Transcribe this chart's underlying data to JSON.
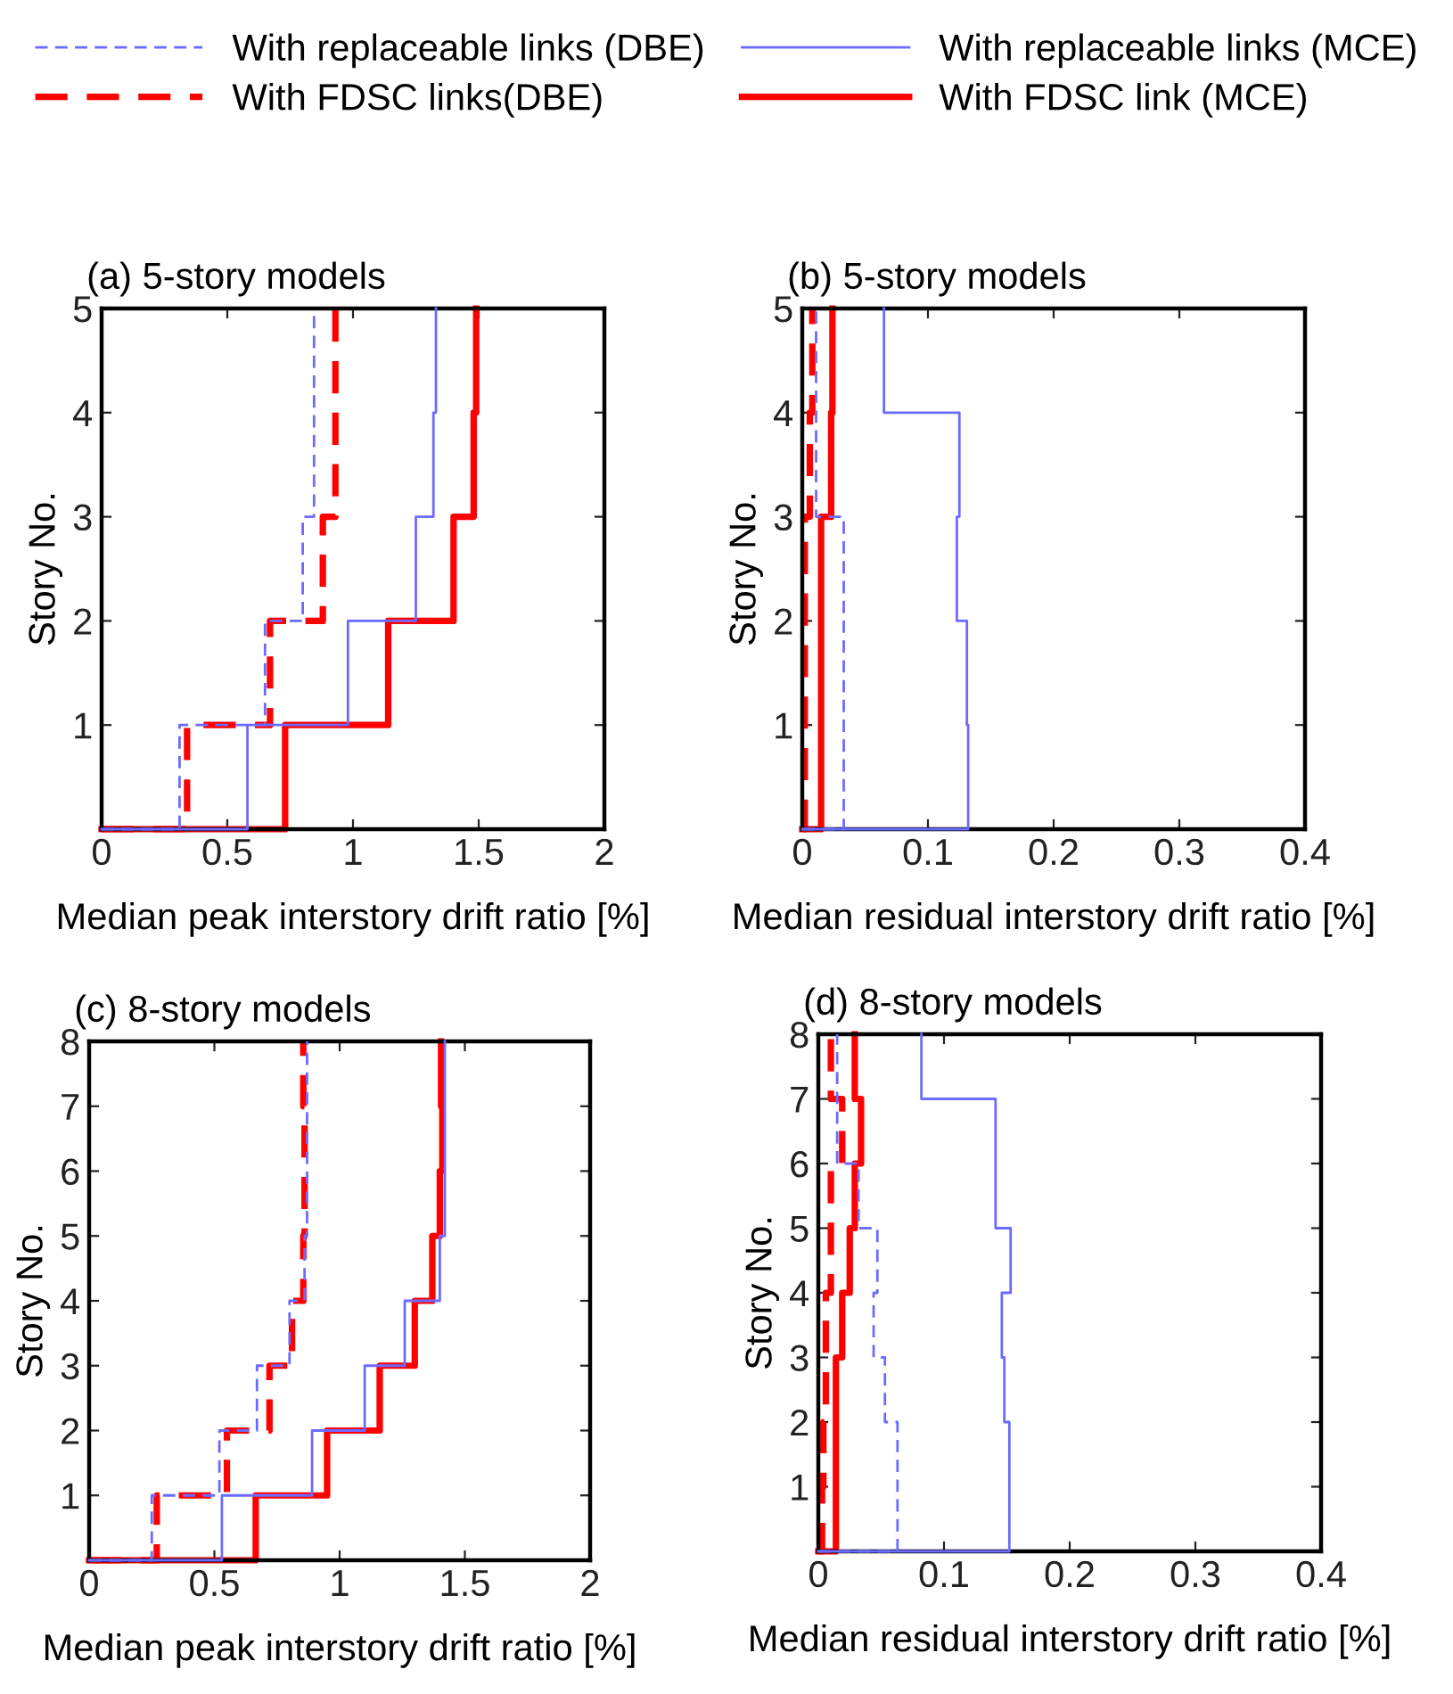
{
  "chart_data": [
    {
      "type": "line",
      "title": "(a) 5-story models",
      "xlabel": "Median peak interstory drift ratio [%]",
      "ylabel": "Story No.",
      "xlim": [
        0,
        2
      ],
      "xticks": [
        0,
        0.5,
        1,
        1.5,
        2
      ],
      "ylim": [
        0,
        5
      ],
      "yticks": [
        1,
        2,
        3,
        4,
        5
      ],
      "legend": "top",
      "grid": false,
      "series": [
        {
          "name": "With replaceable links (DBE)",
          "color": "#6b6bff",
          "line_style": "dashed",
          "x": [
            0,
            0.31,
            0.31,
            0.65,
            0.65,
            0.8,
            0.8,
            0.845,
            0.845,
            0.845,
            0.845
          ],
          "values": [
            0,
            0,
            1,
            1,
            2,
            2,
            3,
            3,
            4,
            4,
            5
          ]
        },
        {
          "name": "With FDSC links(DBE)",
          "color": "#ff0000",
          "line_style": "dashed",
          "x": [
            0,
            0.34,
            0.34,
            0.67,
            0.67,
            0.88,
            0.88,
            0.93,
            0.93,
            0.93,
            0.93
          ],
          "values": [
            0,
            0,
            1,
            1,
            2,
            2,
            3,
            3,
            4,
            4,
            5
          ]
        },
        {
          "name": "With replaceable links (MCE)",
          "color": "#6b6bff",
          "line_style": "solid",
          "x": [
            0,
            0.58,
            0.58,
            0.98,
            0.98,
            1.25,
            1.25,
            1.32,
            1.32,
            1.33,
            1.33
          ],
          "values": [
            0,
            0,
            1,
            1,
            2,
            2,
            3,
            3,
            4,
            4,
            5
          ]
        },
        {
          "name": "With FDSC link (MCE)",
          "color": "#ff0000",
          "line_style": "solid",
          "x": [
            0,
            0.73,
            0.73,
            1.14,
            1.14,
            1.4,
            1.4,
            1.48,
            1.48,
            1.49,
            1.49
          ],
          "values": [
            0,
            0,
            1,
            1,
            2,
            2,
            3,
            3,
            4,
            4,
            5
          ]
        }
      ]
    },
    {
      "type": "line",
      "title": "(b) 5-story models",
      "xlabel": "Median residual interstory drift ratio [%]",
      "ylabel": "Story No.",
      "xlim": [
        0,
        0.4
      ],
      "xticks": [
        0,
        0.1,
        0.2,
        0.3,
        0.4
      ],
      "ylim": [
        0,
        5
      ],
      "yticks": [
        1,
        2,
        3,
        4,
        5
      ],
      "grid": false,
      "series": [
        {
          "color": "#6b6bff",
          "line_style": "dashed",
          "x": [
            0,
            0.033,
            0.033,
            0.033,
            0.033,
            0.033,
            0.033,
            0.011,
            0.011,
            0.011,
            0.011
          ],
          "values": [
            0,
            0,
            1,
            1,
            2,
            2,
            3,
            3,
            4,
            4,
            5
          ]
        },
        {
          "color": "#ff0000",
          "line_style": "dashed",
          "x": [
            0,
            0.002,
            0.002,
            0.002,
            0.002,
            0.002,
            0.002,
            0.006,
            0.006,
            0.008,
            0.008
          ],
          "values": [
            0,
            0,
            1,
            1,
            2,
            2,
            3,
            3,
            4,
            4,
            5
          ]
        },
        {
          "color": "#6b6bff",
          "line_style": "solid",
          "x": [
            0,
            0.132,
            0.132,
            0.131,
            0.131,
            0.123,
            0.123,
            0.125,
            0.125,
            0.065,
            0.065
          ],
          "values": [
            0,
            0,
            1,
            1,
            2,
            2,
            3,
            3,
            4,
            4,
            5
          ]
        },
        {
          "color": "#ff0000",
          "line_style": "solid",
          "x": [
            0,
            0.015,
            0.015,
            0.015,
            0.015,
            0.015,
            0.015,
            0.023,
            0.023,
            0.024,
            0.024
          ],
          "values": [
            0,
            0,
            1,
            1,
            2,
            2,
            3,
            3,
            4,
            4,
            5
          ]
        }
      ]
    },
    {
      "type": "line",
      "title": "(c) 8-story models",
      "xlabel": "Median peak interstory drift ratio [%]",
      "ylabel": "Story No.",
      "xlim": [
        0,
        2
      ],
      "xticks": [
        0,
        0.5,
        1,
        1.5,
        2
      ],
      "ylim": [
        0,
        8
      ],
      "yticks": [
        1,
        2,
        3,
        4,
        5,
        6,
        7,
        8
      ],
      "grid": false,
      "series": [
        {
          "color": "#6b6bff",
          "line_style": "dashed",
          "x": [
            0,
            0.25,
            0.25,
            0.52,
            0.52,
            0.67,
            0.67,
            0.8,
            0.8,
            0.86,
            0.86,
            0.87,
            0.87,
            0.87,
            0.87,
            0.87,
            0.87
          ],
          "values": [
            0,
            0,
            1,
            1,
            2,
            2,
            3,
            3,
            4,
            4,
            5,
            5,
            6,
            6,
            7,
            7,
            8
          ]
        },
        {
          "color": "#ff0000",
          "line_style": "dashed",
          "x": [
            0,
            0.27,
            0.27,
            0.55,
            0.55,
            0.72,
            0.72,
            0.81,
            0.81,
            0.855,
            0.855,
            0.86,
            0.86,
            0.86,
            0.86,
            0.855,
            0.855
          ],
          "values": [
            0,
            0,
            1,
            1,
            2,
            2,
            3,
            3,
            4,
            4,
            5,
            5,
            6,
            6,
            7,
            7,
            8
          ]
        },
        {
          "color": "#6b6bff",
          "line_style": "solid",
          "x": [
            0,
            0.53,
            0.53,
            0.89,
            0.89,
            1.1,
            1.1,
            1.26,
            1.26,
            1.4,
            1.4,
            1.42,
            1.42,
            1.42,
            1.42,
            1.42,
            1.42
          ],
          "values": [
            0,
            0,
            1,
            1,
            2,
            2,
            3,
            3,
            4,
            4,
            5,
            5,
            6,
            6,
            7,
            7,
            8
          ]
        },
        {
          "color": "#ff0000",
          "line_style": "solid",
          "x": [
            0,
            0.665,
            0.665,
            0.95,
            0.95,
            1.16,
            1.16,
            1.3,
            1.3,
            1.37,
            1.37,
            1.4,
            1.4,
            1.41,
            1.41,
            1.405,
            1.405
          ],
          "values": [
            0,
            0,
            1,
            1,
            2,
            2,
            3,
            3,
            4,
            4,
            5,
            5,
            6,
            6,
            7,
            7,
            8
          ]
        }
      ]
    },
    {
      "type": "line",
      "title": "(d) 8-story models",
      "xlabel": "Median residual interstory drift ratio [%]",
      "ylabel": "Story No.",
      "xlim": [
        0,
        0.4
      ],
      "xticks": [
        0,
        0.1,
        0.2,
        0.3,
        0.4
      ],
      "ylim": [
        0,
        8
      ],
      "yticks": [
        1,
        2,
        3,
        4,
        5,
        6,
        7,
        8
      ],
      "grid": false,
      "series": [
        {
          "color": "#6b6bff",
          "line_style": "dashed",
          "x": [
            0,
            0.063,
            0.063,
            0.063,
            0.063,
            0.053,
            0.053,
            0.044,
            0.044,
            0.047,
            0.047,
            0.032,
            0.032,
            0.015,
            0.015,
            0.015,
            0.015
          ],
          "values": [
            0,
            0,
            1,
            1,
            2,
            2,
            3,
            3,
            4,
            4,
            5,
            5,
            6,
            6,
            7,
            7,
            8
          ]
        },
        {
          "color": "#ff0000",
          "line_style": "dashed",
          "x": [
            0,
            0.003,
            0.003,
            0.004,
            0.004,
            0.006,
            0.006,
            0.006,
            0.006,
            0.01,
            0.01,
            0.01,
            0.01,
            0.019,
            0.019,
            0.01,
            0.01
          ],
          "values": [
            0,
            0,
            1,
            1,
            2,
            2,
            3,
            3,
            4,
            4,
            5,
            5,
            6,
            6,
            7,
            7,
            8
          ]
        },
        {
          "color": "#6b6bff",
          "line_style": "solid",
          "x": [
            0,
            0.152,
            0.152,
            0.152,
            0.152,
            0.148,
            0.148,
            0.146,
            0.146,
            0.153,
            0.153,
            0.141,
            0.141,
            0.141,
            0.141,
            0.082,
            0.082
          ],
          "values": [
            0,
            0,
            1,
            1,
            2,
            2,
            3,
            3,
            4,
            4,
            5,
            5,
            6,
            6,
            7,
            7,
            8
          ]
        },
        {
          "color": "#ff0000",
          "line_style": "solid",
          "x": [
            0,
            0.014,
            0.014,
            0.014,
            0.014,
            0.014,
            0.014,
            0.019,
            0.019,
            0.025,
            0.025,
            0.029,
            0.029,
            0.034,
            0.034,
            0.029,
            0.029
          ],
          "values": [
            0,
            0,
            1,
            1,
            2,
            2,
            3,
            3,
            4,
            4,
            5,
            5,
            6,
            6,
            7,
            7,
            8
          ]
        }
      ]
    }
  ]
}
